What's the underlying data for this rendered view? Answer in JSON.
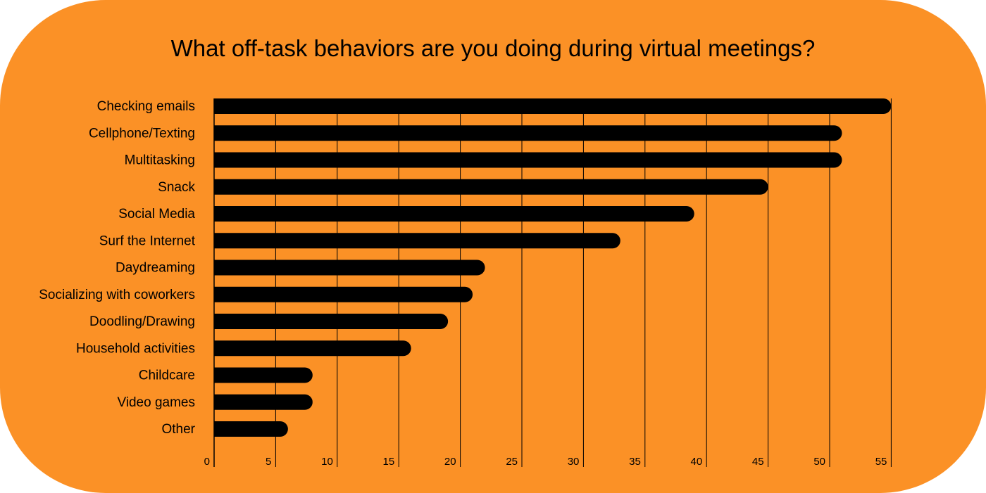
{
  "chart_data": {
    "type": "bar",
    "orientation": "horizontal",
    "title": "What off-task behaviors are you doing during virtual meetings?",
    "categories": [
      "Checking emails",
      "Cellphone/Texting",
      "Multitasking",
      "Snack",
      "Social Media",
      "Surf the Internet",
      "Daydreaming",
      "Socializing with coworkers",
      "Doodling/Drawing",
      "Household activities",
      "Childcare",
      "Video games",
      "Other"
    ],
    "values": [
      55,
      51,
      51,
      45,
      39,
      33,
      22,
      21,
      19,
      16,
      8,
      8,
      6
    ],
    "xlim": [
      0,
      57
    ],
    "xticks": [
      0,
      5,
      10,
      15,
      20,
      25,
      30,
      35,
      40,
      45,
      50,
      55
    ],
    "grid": true,
    "colors": {
      "background": "#fb9126",
      "bar": "#000000",
      "grid": "#000000"
    }
  }
}
